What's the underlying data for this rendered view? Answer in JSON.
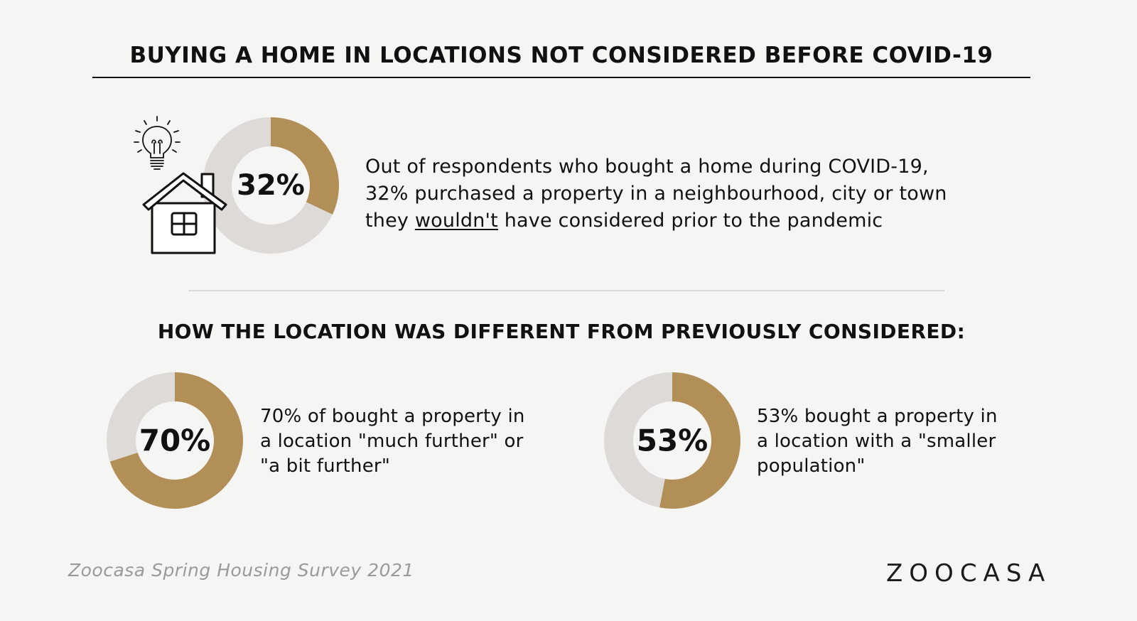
{
  "title": "BUYING A HOME IN LOCATIONS NOT CONSIDERED BEFORE COVID-19",
  "subheading": "HOW THE LOCATION WAS DIFFERENT FROM PREVIOUSLY CONSIDERED:",
  "colors": {
    "accent": "#b38f58",
    "track": "#dedad8",
    "background": "#f5f5f4",
    "text": "#111111",
    "muted": "#9a9a98"
  },
  "stat_main": {
    "line1": "Out of respondents who bought a home during COVID-19,",
    "line2": "32% purchased a property in a neighbourhood, city or town",
    "line3_pre": "they ",
    "line3_emph": "wouldn't",
    "line3_post": " have considered prior to the pandemic"
  },
  "stat_further": {
    "line1": "70% of bought a property in",
    "line2": "a location \"much further\" or",
    "line3": "\"a bit further\""
  },
  "stat_population": {
    "line1": "53% bought a property in",
    "line2": "a location with a \"smaller",
    "line3": "population\""
  },
  "icons": {
    "bulb": "lightbulb-icon",
    "house": "house-icon"
  },
  "source": "Zoocasa Spring Housing Survey 2021",
  "logo": "ZOOCASA",
  "chart_data": [
    {
      "type": "pie",
      "donut": true,
      "label": "32%",
      "values": [
        32,
        68
      ],
      "colors": [
        "#b38f58",
        "#dedad8"
      ]
    },
    {
      "type": "pie",
      "donut": true,
      "label": "70%",
      "values": [
        70,
        30
      ],
      "colors": [
        "#b38f58",
        "#dedad8"
      ]
    },
    {
      "type": "pie",
      "donut": true,
      "label": "53%",
      "values": [
        53,
        47
      ],
      "colors": [
        "#b38f58",
        "#dedad8"
      ]
    }
  ]
}
